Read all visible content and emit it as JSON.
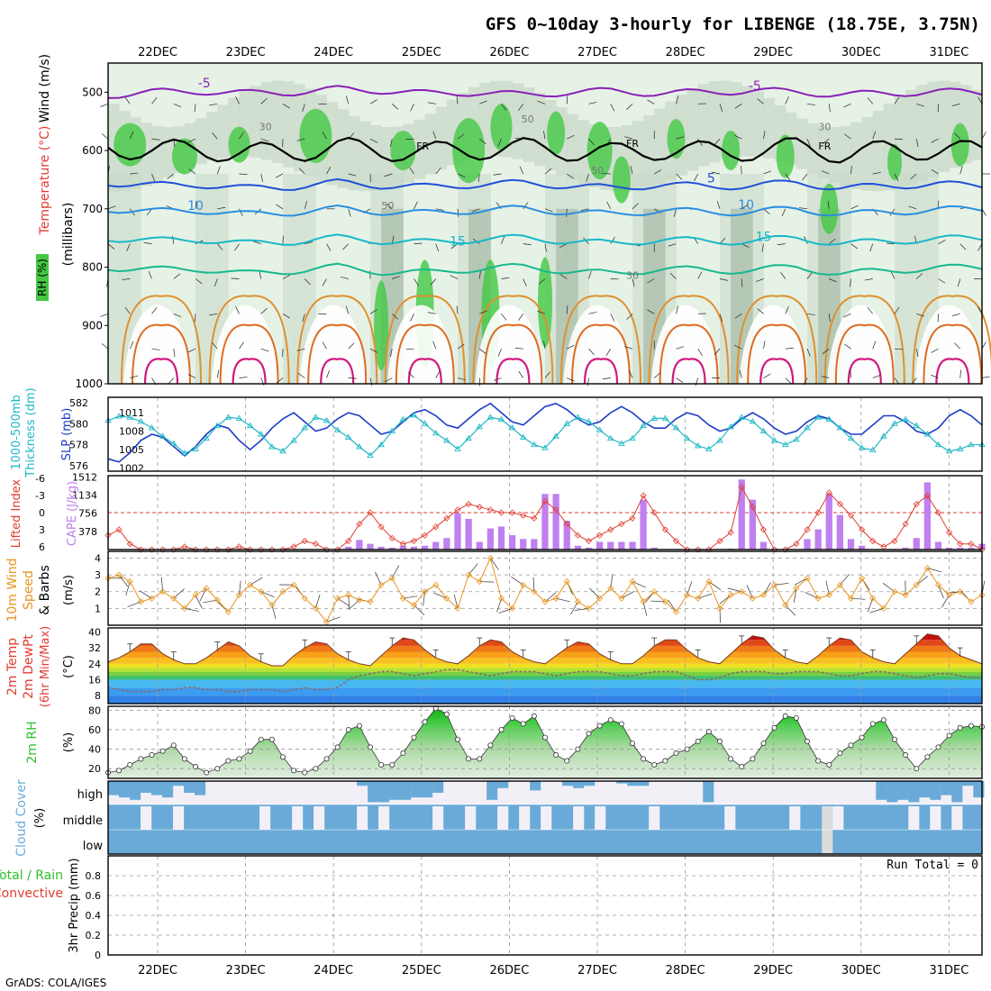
{
  "title": "GFS 0~10day 3-hourly for LIBENGE (18.75E, 3.75N)",
  "credit": "GrADS: COLA/IGES",
  "colors": {
    "frame": "#000000",
    "grid": "#9a9a9a",
    "rh_light": "#e6f2e6",
    "rh_mid": "#c8d8c8",
    "rh_dark": "#9ab09a",
    "rh_green": "#44c844",
    "temp_minus5": "#8a1fb8",
    "temp_0": "#000000",
    "temp_5": "#2050d8",
    "temp_10": "#2a8ee0",
    "temp_15": "#18b8c8",
    "temp_20": "#18b890",
    "temp_25": "#e09030",
    "temp_30": "#e06a20",
    "temp_35": "#d01880",
    "slp": "#1c3cc8",
    "thickness": "#20b8c8",
    "cape": "#c080f0",
    "lifted": "#e03c30",
    "wind10": "#e89420",
    "rh2m": "#30c030",
    "cloud": "#6aaad8",
    "cloud_clear": "#f2f0f6"
  },
  "chart_data": [
    {
      "id": "upper-air",
      "type": "heatmap",
      "ylabel": "(millibars)",
      "side_label_temperature": "Temperature (°C)",
      "side_label_wind": "Wind (m/s)",
      "side_label_rh": "RH (%)",
      "yticks": [
        500,
        600,
        700,
        800,
        900,
        1000
      ],
      "ylim": [
        450,
        1000
      ],
      "contour_labels": [
        "-5",
        "-5",
        "FR",
        "FR",
        "FR",
        "5",
        "10",
        "10",
        "15",
        "15",
        "30",
        "30",
        "50",
        "50",
        "50",
        "30"
      ],
      "isotherms": [
        {
          "name": "-5",
          "level_mb": [
            505,
            500,
            498,
            502,
            500,
            495,
            497,
            503,
            500,
            505,
            500,
            498,
            502,
            500,
            497,
            500,
            504,
            502,
            499,
            501
          ]
        },
        {
          "name": "FR",
          "level_mb": [
            595,
            600,
            598,
            605,
            602,
            595,
            600,
            603,
            598,
            596,
            600,
            605,
            598,
            602,
            600,
            595,
            605,
            600,
            598,
            602
          ]
        },
        {
          "name": "5",
          "level_mb": [
            655,
            660,
            658,
            665,
            662,
            655,
            660,
            663,
            658,
            656,
            660,
            665,
            658,
            662,
            660,
            655,
            665,
            660,
            658,
            660
          ]
        },
        {
          "name": "10",
          "level_mb": [
            700,
            705,
            702,
            710,
            706,
            700,
            705,
            708,
            702,
            700,
            705,
            710,
            702,
            706,
            705,
            700,
            710,
            705,
            702,
            700
          ]
        },
        {
          "name": "15",
          "level_mb": [
            750,
            755,
            752,
            760,
            756,
            750,
            755,
            758,
            752,
            750,
            755,
            760,
            752,
            756,
            755,
            750,
            760,
            755,
            752,
            750
          ]
        },
        {
          "name": "20",
          "level_mb": [
            800,
            805,
            802,
            812,
            806,
            800,
            808,
            810,
            802,
            800,
            806,
            812,
            802,
            806,
            805,
            800,
            812,
            805,
            802,
            800
          ]
        }
      ]
    },
    {
      "id": "slp-thickness",
      "type": "line",
      "ylabel_left": "1000-500mb Thickness (dm)",
      "ylabel_right": "SLP (mb)",
      "yticks_left": [
        576,
        578,
        580,
        582
      ],
      "yticks_right": [
        1002,
        1005,
        1008,
        1011
      ],
      "ylim_left": [
        576,
        582
      ],
      "series": [
        {
          "name": "SLP",
          "values": [
            1003.5,
            1003.0,
            1004.5,
            1006.5,
            1007.5,
            1007.0,
            1005.5,
            1004.0,
            1005.5,
            1007.5,
            1009.0,
            1008.5,
            1006.5,
            1005.0,
            1006.5,
            1008.5,
            1010.0,
            1011.0,
            1009.5,
            1008.0,
            1008.5,
            1010.0,
            1011.0,
            1010.5,
            1009.0,
            1007.5,
            1008.0,
            1009.5,
            1011.0,
            1011.5,
            1010.5,
            1009.0,
            1008.5,
            1010.0,
            1011.5,
            1012.5,
            1011.0,
            1009.5,
            1009.0,
            1010.5,
            1012.0,
            1012.5,
            1011.5,
            1010.0,
            1009.0,
            1009.5,
            1011.0,
            1012.0,
            1011.0,
            1009.5,
            1008.5,
            1008.5,
            1010.0,
            1011.0,
            1010.5,
            1009.0,
            1008.0,
            1008.5,
            1010.0,
            1011.0,
            1010.0,
            1008.5,
            1007.5,
            1008.0,
            1009.5,
            1010.5,
            1010.0,
            1008.5,
            1007.5,
            1007.5,
            1009.0,
            1010.5,
            1010.5,
            1009.5,
            1008.0,
            1007.5,
            1008.5,
            1010.5,
            1011.5,
            1010.5,
            1009.0
          ]
        },
        {
          "name": "Thickness",
          "values": [
            580.3,
            580.7,
            580.6,
            580.2,
            579.6,
            578.8,
            578.1,
            577.2,
            577.6,
            578.6,
            579.8,
            580.6,
            580.5,
            579.8,
            579.0,
            577.8,
            577.4,
            578.4,
            579.6,
            580.6,
            580.3,
            579.4,
            578.7,
            577.8,
            577.0,
            578.0,
            579.3,
            580.4,
            580.8,
            580.0,
            579.1,
            578.4,
            577.6,
            578.6,
            579.7,
            580.6,
            580.4,
            579.6,
            578.7,
            578.0,
            577.7,
            578.8,
            580.0,
            580.6,
            580.2,
            579.4,
            578.6,
            578.1,
            578.6,
            579.8,
            580.5,
            580.5,
            579.6,
            578.6,
            577.9,
            577.6,
            578.4,
            579.7,
            580.6,
            580.2,
            579.3,
            578.4,
            578.0,
            578.5,
            579.6,
            580.6,
            580.4,
            579.6,
            578.6,
            577.7,
            577.5,
            578.8,
            580.0,
            580.4,
            579.8,
            579.0,
            578.0,
            577.4,
            577.6,
            578.0,
            578.0
          ]
        }
      ]
    },
    {
      "id": "cape-li",
      "type": "bar",
      "ylabel_left": "Lifted Index",
      "ylabel_right": "CAPE (J/kg)",
      "yticks_left": [
        6,
        3,
        0,
        -3,
        -6
      ],
      "yticks_right": [
        378,
        756,
        1134,
        1512
      ],
      "series": [
        {
          "name": "CAPE",
          "values": [
            0,
            0,
            0,
            0,
            0,
            0,
            0,
            0,
            0,
            0,
            0,
            0,
            0,
            0,
            0,
            0,
            0,
            0,
            0,
            0,
            0,
            0,
            60,
            200,
            120,
            60,
            40,
            80,
            60,
            80,
            160,
            240,
            760,
            640,
            160,
            440,
            480,
            300,
            220,
            220,
            1160,
            1160,
            600,
            80,
            40,
            160,
            160,
            160,
            160,
            1040,
            40,
            0,
            0,
            0,
            0,
            0,
            0,
            20,
            1460,
            1040,
            160,
            0,
            0,
            0,
            220,
            420,
            1160,
            720,
            220,
            80,
            0,
            0,
            0,
            40,
            240,
            1400,
            160,
            40,
            40,
            40,
            120
          ]
        },
        {
          "name": "Lifted Index",
          "values": [
            4.0,
            3.0,
            5.5,
            6.5,
            7.0,
            7.5,
            6.8,
            6.0,
            6.5,
            7.0,
            7.2,
            7.0,
            6.0,
            6.5,
            7.0,
            7.2,
            7.0,
            6.0,
            5.0,
            5.5,
            6.5,
            6.8,
            5.0,
            2.0,
            0.0,
            2.5,
            4.5,
            5.5,
            5.0,
            4.0,
            2.5,
            1.0,
            -0.5,
            -1.5,
            -1.0,
            -0.5,
            0.0,
            0.0,
            0.5,
            1.0,
            -2.0,
            -0.5,
            2.0,
            4.0,
            5.0,
            4.0,
            3.0,
            2.0,
            1.0,
            -3.0,
            0.0,
            3.0,
            5.0,
            6.5,
            7.0,
            6.5,
            5.0,
            3.5,
            -4.5,
            -1.0,
            3.0,
            6.5,
            7.5,
            5.5,
            3.0,
            0.0,
            -3.5,
            -1.5,
            0.5,
            3.0,
            5.0,
            6.0,
            5.0,
            2.0,
            -1.5,
            -3.0,
            0.0,
            3.5,
            5.5,
            5.5,
            6.5
          ]
        }
      ]
    },
    {
      "id": "wind10m",
      "type": "line",
      "ylabel": "10m Wind Speed & Barbs (m/s)",
      "yticks": [
        1,
        2,
        3,
        4
      ],
      "ylim": [
        0,
        4.4
      ],
      "series": [
        {
          "name": "10m Wind Speed",
          "values": [
            2.8,
            3.0,
            2.6,
            1.4,
            1.6,
            2.0,
            1.6,
            1.0,
            1.8,
            2.2,
            1.5,
            0.8,
            1.8,
            2.4,
            2.0,
            1.2,
            2.0,
            2.4,
            1.6,
            1.0,
            0.2,
            1.6,
            1.8,
            1.5,
            1.4,
            2.4,
            2.8,
            1.6,
            1.2,
            2.0,
            2.4,
            1.6,
            1.0,
            3.0,
            2.6,
            4.0,
            1.6,
            1.0,
            2.4,
            2.0,
            1.4,
            1.6,
            2.6,
            1.4,
            1.0,
            1.6,
            2.2,
            1.6,
            2.6,
            1.4,
            2.0,
            1.4,
            0.8,
            1.8,
            1.6,
            2.6,
            1.0,
            1.8,
            2.0,
            1.6,
            1.8,
            2.4,
            1.2,
            2.2,
            2.8,
            1.6,
            1.8,
            2.4,
            1.6,
            2.8,
            1.6,
            1.0,
            2.0,
            1.8,
            2.4,
            3.4,
            2.4,
            1.8,
            2.0,
            1.4,
            1.8
          ]
        }
      ]
    },
    {
      "id": "temp2m",
      "type": "area",
      "ylabel": "2m Temp 2m DewPt (6hr Min/Max) (°C)",
      "yticks": [
        8,
        16,
        24,
        32,
        40
      ],
      "ylim": [
        4,
        42
      ],
      "series": [
        {
          "name": "2m Temp",
          "values": [
            25,
            27,
            30,
            34,
            34,
            29,
            26,
            24,
            24,
            27,
            31,
            35,
            33,
            28,
            25,
            23,
            23,
            28,
            32,
            35,
            34,
            29,
            26,
            24,
            23,
            28,
            33,
            37,
            36,
            31,
            27,
            25,
            24,
            28,
            33,
            36,
            35,
            30,
            27,
            25,
            24,
            28,
            32,
            35,
            34,
            29,
            26,
            24,
            24,
            28,
            33,
            36,
            36,
            31,
            27,
            25,
            24,
            29,
            34,
            38,
            37,
            31,
            27,
            25,
            24,
            28,
            33,
            37,
            36,
            30,
            27,
            25,
            24,
            29,
            34,
            39,
            38,
            32,
            28,
            26,
            24
          ]
        },
        {
          "name": "2m DewPt",
          "values": [
            12,
            11,
            10,
            10,
            10,
            11,
            11,
            12,
            12,
            11,
            11,
            10,
            10,
            11,
            11,
            11,
            10,
            11,
            12,
            11,
            11,
            12,
            16,
            18,
            19,
            20,
            20,
            19,
            18,
            19,
            20,
            21,
            21,
            20,
            19,
            18,
            19,
            20,
            20,
            20,
            19,
            18,
            19,
            20,
            20,
            20,
            19,
            18,
            18,
            19,
            20,
            20,
            20,
            18,
            16,
            16,
            17,
            19,
            20,
            20,
            20,
            19,
            19,
            20,
            20,
            20,
            19,
            18,
            18,
            19,
            20,
            20,
            19,
            18,
            17,
            18,
            19,
            19,
            18,
            17,
            17
          ]
        }
      ]
    },
    {
      "id": "rh2m",
      "type": "area",
      "ylabel": "2m RH (%)",
      "yticks": [
        20,
        40,
        60,
        80
      ],
      "ylim": [
        10,
        84
      ],
      "series": [
        {
          "name": "2m RH",
          "values": [
            16,
            18,
            24,
            30,
            34,
            38,
            44,
            30,
            22,
            16,
            20,
            28,
            30,
            38,
            50,
            50,
            32,
            18,
            16,
            20,
            30,
            42,
            60,
            64,
            42,
            24,
            24,
            36,
            52,
            68,
            82,
            76,
            50,
            30,
            30,
            44,
            60,
            72,
            66,
            74,
            52,
            34,
            28,
            40,
            56,
            64,
            70,
            66,
            46,
            30,
            24,
            28,
            36,
            40,
            48,
            58,
            48,
            30,
            22,
            30,
            46,
            62,
            74,
            72,
            48,
            28,
            24,
            36,
            44,
            52,
            66,
            70,
            50,
            34,
            20,
            32,
            42,
            54,
            62,
            64,
            63
          ]
        }
      ]
    },
    {
      "id": "cloud",
      "type": "heatmap",
      "ylabel": "Cloud Cover (%)",
      "levels": [
        "high",
        "middle",
        "low"
      ]
    },
    {
      "id": "precip",
      "type": "bar",
      "ylabel": "3hr Precip (mm)",
      "side_label_total": "Total / Rain",
      "side_label_conv": "Convective",
      "yticks": [
        0,
        0.2,
        0.4,
        0.6,
        0.8
      ],
      "ylim": [
        0,
        1.0
      ],
      "run_total": "Run Total = 0",
      "values": []
    }
  ],
  "axis": {
    "top_days": [
      "22DEC",
      "23DEC",
      "24DEC",
      "25DEC",
      "26DEC",
      "27DEC",
      "28DEC",
      "29DEC",
      "30DEC",
      "31DEC"
    ],
    "bottom_days": [
      "22DEC",
      "23DEC",
      "24DEC",
      "25DEC",
      "26DEC",
      "27DEC",
      "28DEC",
      "29DEC",
      "30DEC",
      "31DEC"
    ]
  },
  "labels": {
    "wind_panel": "10m Wind",
    "wind_panel2": "Speed",
    "wind_panel3": "& Barbs",
    "wind_units": "(m/s)",
    "temp_panel1": "2m Temp",
    "temp_panel2": "2m DewPt",
    "temp_panel3": "(6hr Min/Max)",
    "temp_units": "(°C)",
    "rh_panel": "2m RH",
    "rh_units": "(%)",
    "cloud_panel": "Cloud Cover",
    "cloud_units": "(%)",
    "precip_panel": "3hr Precip (mm)",
    "precip_total": "Total / Rain",
    "precip_conv": "Convective",
    "thick_panel1": "1000-500mb",
    "thick_panel2": "Thickness (dm)",
    "slp_panel": "SLP (mb)",
    "li_panel": "Lifted Index",
    "cape_panel": "CAPE (J/kg)",
    "mb_label": "(millibars)",
    "temp_label": "Temperature (°C)",
    "wind_label": "Wind (m/s)",
    "rh_label": "RH (%)",
    "cloud_high": "high",
    "cloud_middle": "middle",
    "cloud_low": "low"
  }
}
